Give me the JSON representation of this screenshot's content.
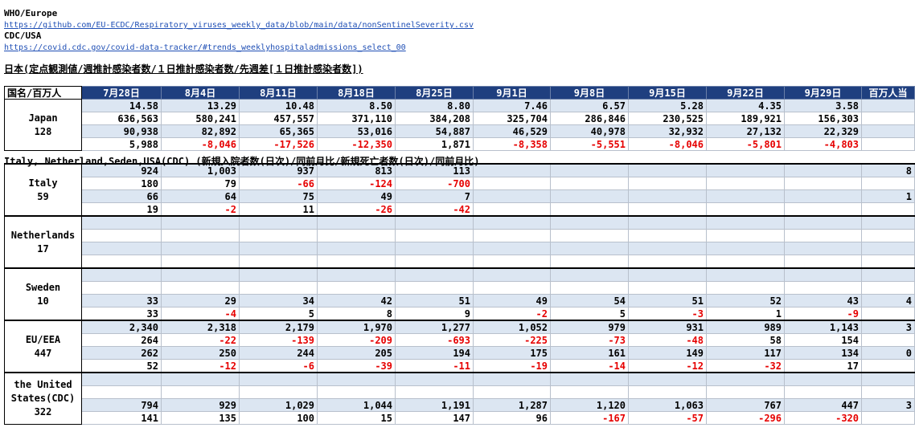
{
  "sources": {
    "who_label": "WHO/Europe",
    "who_url": "https://github.com/EU-ECDC/Respiratory_viruses_weekly_data/blob/main/data/nonSentinelSeverity.csv",
    "cdc_label": "CDC/USA",
    "cdc_url": "https://covid.cdc.gov/covid-data-tracker/#trends_weeklyhospitaladmissions_select_00"
  },
  "japan_title": "日本(定点観測値/週推計感染者数/１日推計感染者数/先週差[１日推計感染者数])",
  "other_title": "Italy, Netherland,Seden,USA(CDC) (新規入院者数(日次)/同前月比/新規死亡者数(日次)/同前月比)",
  "header": {
    "corner": "国名/百万人",
    "dates": [
      "7月28日",
      "8月4日",
      "8月11日",
      "8月18日",
      "8月25日",
      "9月1日",
      "9月8日",
      "9月15日",
      "9月22日",
      "9月29日"
    ],
    "per_million": "百万人当"
  },
  "groups": [
    {
      "name": "Japan",
      "population": "128",
      "rows": [
        {
          "values": [
            "14.58",
            "13.29",
            "10.48",
            "8.50",
            "8.80",
            "7.46",
            "6.57",
            "5.28",
            "4.35",
            "3.58"
          ],
          "pm": ""
        },
        {
          "values": [
            "636,563",
            "580,241",
            "457,557",
            "371,110",
            "384,208",
            "325,704",
            "286,846",
            "230,525",
            "189,921",
            "156,303"
          ],
          "pm": ""
        },
        {
          "values": [
            "90,938",
            "82,892",
            "65,365",
            "53,016",
            "54,887",
            "46,529",
            "40,978",
            "32,932",
            "27,132",
            "22,329"
          ],
          "pm": ""
        },
        {
          "values": [
            "5,988",
            "-8,046",
            "-17,526",
            "-12,350",
            "1,871",
            "-8,358",
            "-5,551",
            "-8,046",
            "-5,801",
            "-4,803"
          ],
          "pm": ""
        }
      ]
    },
    {
      "name": "Italy",
      "population": "59",
      "rows": [
        {
          "values": [
            "924",
            "1,003",
            "937",
            "813",
            "113",
            "",
            "",
            "",
            "",
            ""
          ],
          "pm": "8"
        },
        {
          "values": [
            "180",
            "79",
            "-66",
            "-124",
            "-700",
            "",
            "",
            "",
            "",
            ""
          ],
          "pm": ""
        },
        {
          "values": [
            "66",
            "64",
            "75",
            "49",
            "7",
            "",
            "",
            "",
            "",
            ""
          ],
          "pm": "1"
        },
        {
          "values": [
            "19",
            "-2",
            "11",
            "-26",
            "-42",
            "",
            "",
            "",
            "",
            ""
          ],
          "pm": ""
        }
      ]
    },
    {
      "name": "Netherlands",
      "population": "17",
      "rows": [
        {
          "values": [
            "",
            "",
            "",
            "",
            "",
            "",
            "",
            "",
            "",
            ""
          ],
          "pm": ""
        },
        {
          "values": [
            "",
            "",
            "",
            "",
            "",
            "",
            "",
            "",
            "",
            ""
          ],
          "pm": ""
        },
        {
          "values": [
            "",
            "",
            "",
            "",
            "",
            "",
            "",
            "",
            "",
            ""
          ],
          "pm": ""
        },
        {
          "values": [
            "",
            "",
            "",
            "",
            "",
            "",
            "",
            "",
            "",
            ""
          ],
          "pm": ""
        }
      ]
    },
    {
      "name": "Sweden",
      "population": "10",
      "rows": [
        {
          "values": [
            "",
            "",
            "",
            "",
            "",
            "",
            "",
            "",
            "",
            ""
          ],
          "pm": ""
        },
        {
          "values": [
            "",
            "",
            "",
            "",
            "",
            "",
            "",
            "",
            "",
            ""
          ],
          "pm": ""
        },
        {
          "values": [
            "33",
            "29",
            "34",
            "42",
            "51",
            "49",
            "54",
            "51",
            "52",
            "43"
          ],
          "pm": "4"
        },
        {
          "values": [
            "33",
            "-4",
            "5",
            "8",
            "9",
            "-2",
            "5",
            "-3",
            "1",
            "-9"
          ],
          "pm": ""
        }
      ]
    },
    {
      "name": "EU/EEA",
      "population": "447",
      "rows": [
        {
          "values": [
            "2,340",
            "2,318",
            "2,179",
            "1,970",
            "1,277",
            "1,052",
            "979",
            "931",
            "989",
            "1,143"
          ],
          "pm": "3"
        },
        {
          "values": [
            "264",
            "-22",
            "-139",
            "-209",
            "-693",
            "-225",
            "-73",
            "-48",
            "58",
            "154"
          ],
          "pm": ""
        },
        {
          "values": [
            "262",
            "250",
            "244",
            "205",
            "194",
            "175",
            "161",
            "149",
            "117",
            "134"
          ],
          "pm": "0"
        },
        {
          "values": [
            "52",
            "-12",
            "-6",
            "-39",
            "-11",
            "-19",
            "-14",
            "-12",
            "-32",
            "17"
          ],
          "pm": ""
        }
      ]
    },
    {
      "name": "the United States(CDC)",
      "population": "322",
      "rows": [
        {
          "values": [
            "",
            "",
            "",
            "",
            "",
            "",
            "",
            "",
            "",
            ""
          ],
          "pm": ""
        },
        {
          "values": [
            "",
            "",
            "",
            "",
            "",
            "",
            "",
            "",
            "",
            ""
          ],
          "pm": ""
        },
        {
          "values": [
            "794",
            "929",
            "1,029",
            "1,044",
            "1,191",
            "1,287",
            "1,120",
            "1,063",
            "767",
            "447"
          ],
          "pm": "3"
        },
        {
          "values": [
            "141",
            "135",
            "100",
            "15",
            "147",
            "96",
            "-167",
            "-57",
            "-296",
            "-320"
          ],
          "pm": ""
        }
      ]
    }
  ]
}
